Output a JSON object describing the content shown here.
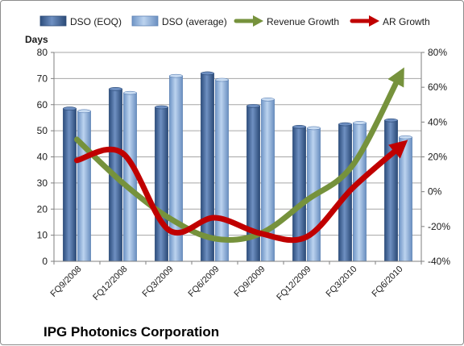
{
  "chart_data": {
    "type": "bar",
    "title": "IPG Photonics Corporation",
    "ylabel": "Days",
    "ylim": [
      0,
      80
    ],
    "y2lim": [
      -40,
      80
    ],
    "yticks": [
      "0",
      "10",
      "20",
      "30",
      "40",
      "50",
      "60",
      "70",
      "80"
    ],
    "y2ticks": [
      "-40%",
      "-20%",
      "0%",
      "20%",
      "40%",
      "60%",
      "80%"
    ],
    "categories": [
      "FQ9/2008",
      "FQ12/2008",
      "FQ3/2009",
      "FQ6/2009",
      "FQ9/2009",
      "FQ12/2009",
      "FQ3/2010",
      "FQ6/2010"
    ],
    "series": [
      {
        "name": "DSO (EOQ)",
        "type": "bar",
        "axis": "left",
        "values": [
          58.5,
          66,
          59,
          72,
          59.5,
          51.5,
          52.5,
          54
        ]
      },
      {
        "name": "DSO (average)",
        "type": "bar",
        "axis": "left",
        "values": [
          57.5,
          64.5,
          71,
          69.5,
          62,
          51,
          53,
          47.5
        ]
      },
      {
        "name": "Revenue Growth",
        "type": "line",
        "axis": "right",
        "unit": "%",
        "values": [
          30,
          5,
          -15,
          -27,
          -24,
          -5,
          15,
          65
        ]
      },
      {
        "name": "AR Growth",
        "type": "line",
        "axis": "right",
        "unit": "%",
        "values": [
          18,
          22,
          -22,
          -15,
          -24,
          -26,
          2,
          25
        ]
      }
    ],
    "grid": true,
    "legend_position": "top",
    "colors": {
      "bar_eoq": "#4f73a8",
      "bar_avg": "#8fb3df",
      "revenue": "#76923c",
      "ar": "#c00000",
      "plot_bg": "#ffffff",
      "grid": "#a6a6a6"
    }
  }
}
